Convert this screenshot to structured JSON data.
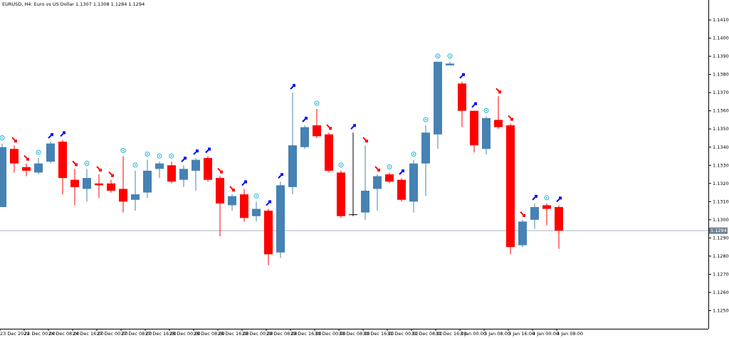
{
  "chart_data": {
    "type": "candlestick",
    "title": "EURUSD, H4:  Euro vs US Dollar  1.1307 1.1308 1.1284 1.1294",
    "categories": [
      "23 Dec 2021",
      null,
      "24 Dec 00:00",
      null,
      "24 Dec 08:00",
      null,
      "24 Dec 16:00",
      null,
      "27 Dec 00:00",
      null,
      "27 Dec 08:00",
      null,
      "27 Dec 16:00",
      null,
      "28 Dec 00:00",
      null,
      "28 Dec 08:00",
      null,
      "28 Dec 16:00",
      null,
      "29 Dec 00:00",
      null,
      "29 Dec 08:00",
      null,
      "29 Dec 16:00",
      null,
      "30 Dec 00:00",
      null,
      "30 Dec 08:00",
      null,
      "30 Dec 16:00",
      null,
      "31 Dec 00:00",
      null,
      "31 Dec 08:00",
      null,
      "31 Dec 16:00",
      null,
      "3 Jan 00:00",
      null,
      "3 Jan 08:00",
      null,
      "3 Jan 16:00",
      null,
      "4 Jan 00:00",
      null,
      "4 Jan 08:00"
    ],
    "open": [
      1.1307,
      1.1339,
      1.1329,
      1.1326,
      1.1332,
      1.1343,
      1.1322,
      1.1317,
      1.132,
      1.132,
      1.1317,
      1.1311,
      1.1315,
      1.1328,
      1.133,
      1.1322,
      1.1327,
      1.1334,
      1.1323,
      1.1308,
      1.1314,
      1.1302,
      1.1305,
      1.1282,
      1.1318,
      1.134,
      1.1352,
      1.1347,
      1.1326,
      1.1303,
      1.1304,
      1.1317,
      1.1325,
      1.1322,
      1.131,
      1.1331,
      1.1347,
      1.1385,
      1.1375,
      1.136,
      1.1339,
      1.1355,
      1.1352,
      1.1286,
      1.13,
      1.1308,
      1.1307
    ],
    "high": [
      1.1342,
      1.1341,
      1.1331,
      1.1334,
      1.1343,
      1.1344,
      1.1328,
      1.1328,
      1.1325,
      1.1322,
      1.1335,
      1.1327,
      1.1333,
      1.1332,
      1.1332,
      1.133,
      1.1334,
      1.1335,
      1.1324,
      1.1314,
      1.1317,
      1.131,
      1.1306,
      1.1321,
      1.137,
      1.1352,
      1.1361,
      1.1348,
      1.1327,
      1.1348,
      1.1341,
      1.1325,
      1.1326,
      1.1323,
      1.1333,
      1.1352,
      1.1387,
      1.1387,
      1.1376,
      1.136,
      1.1357,
      1.1368,
      1.1353,
      1.13,
      1.1309,
      1.1309,
      1.1308
    ],
    "low": [
      1.1307,
      1.1326,
      1.1324,
      1.1325,
      1.1331,
      1.1314,
      1.1308,
      1.131,
      1.1312,
      1.1315,
      1.1304,
      1.1305,
      1.1312,
      1.1323,
      1.132,
      1.1318,
      1.1316,
      1.1321,
      1.1291,
      1.1305,
      1.1299,
      1.1299,
      1.1275,
      1.1279,
      1.1314,
      1.1339,
      1.1345,
      1.1326,
      1.1301,
      1.1302,
      1.13,
      1.1305,
      1.132,
      1.131,
      1.1304,
      1.1313,
      1.1339,
      1.1385,
      1.1351,
      1.1337,
      1.1336,
      1.135,
      1.1281,
      1.1285,
      1.1295,
      1.1297,
      1.1284
    ],
    "close": [
      1.134,
      1.1331,
      1.1327,
      1.1331,
      1.1342,
      1.1323,
      1.1318,
      1.1323,
      1.1319,
      1.1316,
      1.131,
      1.1314,
      1.1327,
      1.1331,
      1.1321,
      1.1328,
      1.1333,
      1.1322,
      1.1309,
      1.1313,
      1.1301,
      1.1306,
      1.1281,
      1.1319,
      1.1341,
      1.1351,
      1.1346,
      1.1327,
      1.1302,
      1.1303,
      1.1316,
      1.1324,
      1.1321,
      1.1311,
      1.1331,
      1.1348,
      1.1387,
      1.1386,
      1.136,
      1.1341,
      1.1356,
      1.1351,
      1.1285,
      1.1299,
      1.1307,
      1.1306,
      1.1294
    ],
    "signals": [
      "neutral",
      "down",
      "down",
      "neutral",
      "up",
      "up",
      "down",
      "neutral",
      "down",
      "down",
      "neutral",
      "neutral",
      "neutral",
      "neutral",
      "neutral",
      "up",
      "up",
      "up",
      "down",
      "down",
      "up",
      "neutral",
      "up",
      "up",
      "up",
      "up",
      "neutral",
      "down",
      "neutral",
      "up",
      "down",
      "down",
      "neutral",
      "up",
      "neutral",
      "neutral",
      "neutral",
      "neutral",
      "up",
      "up",
      "neutral",
      "down",
      "down",
      "down",
      "up",
      "neutral",
      "up"
    ],
    "up_color": "#4682b4",
    "down_color": "#ff0000",
    "doji_color": "#000000",
    "signal_colors": {
      "up": "#0000ff",
      "down": "#ff0000",
      "neutral": "#20b2d0"
    },
    "last_price": 1.1294,
    "ylim": [
      1.124,
      1.1421
    ],
    "yticks": [
      {
        "value": 1.141,
        "label": "1.1410"
      },
      {
        "value": 1.14,
        "label": "1.1400"
      },
      {
        "value": 1.139,
        "label": "1.1390"
      },
      {
        "value": 1.138,
        "label": "1.1380"
      },
      {
        "value": 1.137,
        "label": "1.1370"
      },
      {
        "value": 1.136,
        "label": "1.1360"
      },
      {
        "value": 1.135,
        "label": "1.1350"
      },
      {
        "value": 1.134,
        "label": "1.1340"
      },
      {
        "value": 1.133,
        "label": "1.1330"
      },
      {
        "value": 1.132,
        "label": "1.1320"
      },
      {
        "value": 1.131,
        "label": "1.1310"
      },
      {
        "value": 1.13,
        "label": "1.1300"
      },
      {
        "value": 1.129,
        "label": "1.1290"
      },
      {
        "value": 1.128,
        "label": "1.1280"
      },
      {
        "value": 1.127,
        "label": "1.1270"
      },
      {
        "value": 1.126,
        "label": "1.1260"
      },
      {
        "value": 1.125,
        "label": "1.1250"
      }
    ]
  }
}
